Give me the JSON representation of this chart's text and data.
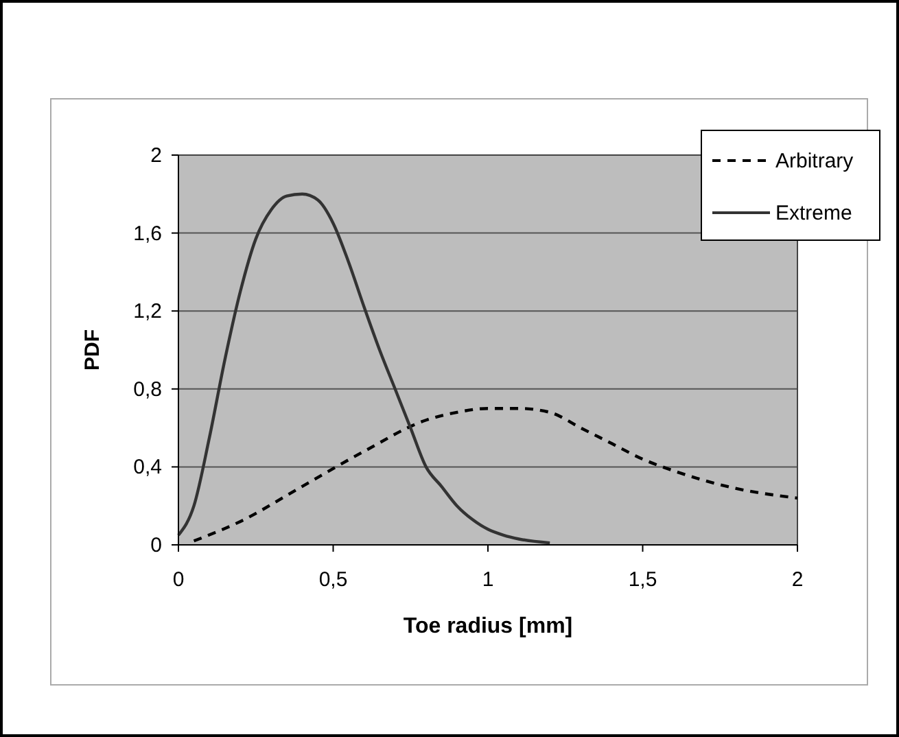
{
  "chart_data": {
    "type": "line",
    "xlabel": "Toe radius [mm]",
    "ylabel": "PDF",
    "xlim": [
      0,
      2
    ],
    "ylim": [
      0,
      2
    ],
    "xticks": [
      0,
      {
        "value": 0.5,
        "label": "0,5"
      },
      1,
      {
        "value": 1.5,
        "label": "1,5"
      },
      2
    ],
    "yticks": [
      0,
      {
        "value": 0.4,
        "label": "0,4"
      },
      {
        "value": 0.8,
        "label": "0,8"
      },
      {
        "value": 1.2,
        "label": "1,2"
      },
      {
        "value": 1.6,
        "label": "1,6"
      },
      2
    ],
    "grid": "y",
    "legend": "top right",
    "series": [
      {
        "name": "Arbitrary",
        "color": "#000000",
        "line_style": "dashed",
        "x": [
          0.05,
          0.2,
          0.4,
          0.6,
          0.8,
          0.9,
          1.0,
          1.1,
          1.2,
          1.3,
          1.4,
          1.5,
          1.6,
          1.7,
          1.8,
          2.0
        ],
        "values": [
          0.02,
          0.12,
          0.3,
          0.48,
          0.64,
          0.68,
          0.7,
          0.7,
          0.68,
          0.6,
          0.52,
          0.44,
          0.38,
          0.33,
          0.29,
          0.24
        ]
      },
      {
        "name": "Extreme",
        "color": "#333333",
        "line_style": "solid",
        "x": [
          0,
          0.05,
          0.1,
          0.15,
          0.2,
          0.25,
          0.3,
          0.35,
          0.4,
          0.45,
          0.5,
          0.55,
          0.6,
          0.65,
          0.7,
          0.75,
          0.8,
          0.85,
          0.9,
          0.95,
          1.0,
          1.05,
          1.1,
          1.2
        ],
        "values": [
          0.05,
          0.2,
          0.55,
          0.95,
          1.3,
          1.57,
          1.72,
          1.79,
          1.8,
          1.77,
          1.65,
          1.45,
          1.22,
          1.0,
          0.8,
          0.6,
          0.4,
          0.3,
          0.2,
          0.13,
          0.08,
          0.05,
          0.03,
          0.01
        ]
      }
    ]
  }
}
